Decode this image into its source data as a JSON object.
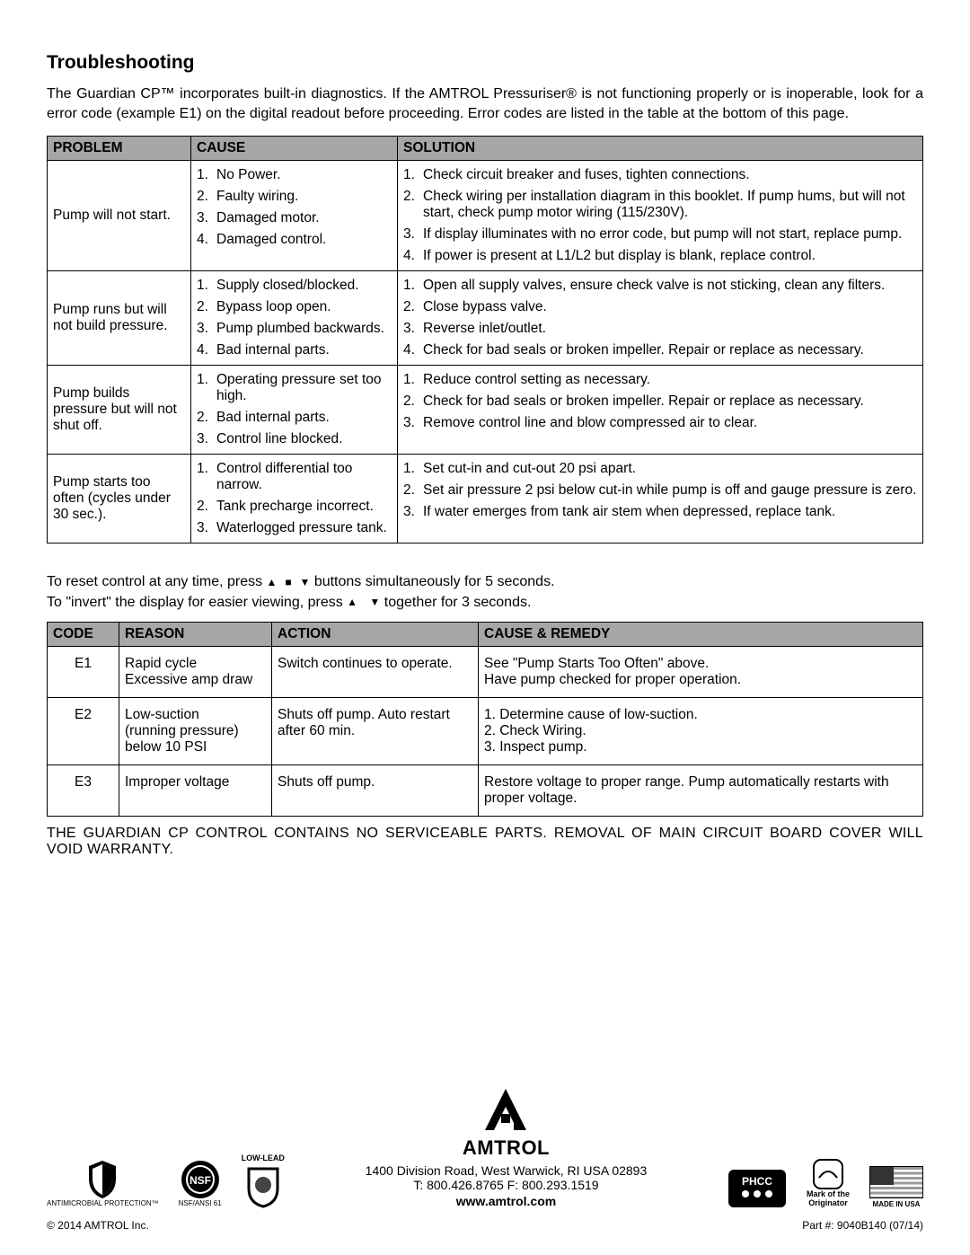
{
  "title": "Troubleshooting",
  "intro": "The Guardian CP™ incorporates built-in diagnostics. If the AMTROL Pressuriser® is not functioning properly or is inoperable, look for a error code (example E1) on the digital readout before proceeding. Error codes are listed in the table at the bottom of this page.",
  "table1": {
    "headers": [
      "PROBLEM",
      "CAUSE",
      "SOLUTION"
    ],
    "rows": [
      {
        "problem": "Pump will not start.",
        "causes": [
          "No Power.",
          "Faulty wiring.",
          "Damaged motor.",
          "Damaged control."
        ],
        "solutions": [
          "Check circuit breaker and fuses, tighten connections.",
          "Check wiring per installation diagram in this booklet. If pump hums, but will not start, check pump motor wiring (115/230V).",
          "If display illuminates with no error code, but pump will not start, replace pump.",
          "If power is present at L1/L2 but display is blank, replace control."
        ]
      },
      {
        "problem": "Pump runs but will not build pressure.",
        "causes": [
          "Supply closed/blocked.",
          "Bypass loop open.",
          "Pump plumbed backwards.",
          "Bad internal parts."
        ],
        "solutions": [
          "Open all supply valves, ensure check valve is not sticking, clean any filters.",
          "Close bypass valve.",
          "Reverse inlet/outlet.",
          "Check for bad seals or broken impeller. Repair or replace as necessary."
        ]
      },
      {
        "problem": "Pump builds pressure but will not shut off.",
        "causes": [
          "Operating pressure set too high.",
          "Bad internal parts.",
          "Control line blocked."
        ],
        "solutions": [
          "Reduce control setting as necessary.",
          "Check for bad seals or broken impeller. Repair or replace as necessary.",
          "Remove control line and blow compressed air to clear."
        ]
      },
      {
        "problem": "Pump starts too often (cycles under 30 sec.).",
        "causes": [
          "Control differential too narrow.",
          "Tank precharge incorrect.",
          "Waterlogged pressure tank."
        ],
        "solutions": [
          "Set cut-in and cut-out 20 psi apart.",
          "Set air pressure 2 psi below cut-in while pump is off and gauge pressure is zero.",
          "If water emerges from tank air stem when depressed, replace tank."
        ]
      }
    ]
  },
  "reset_line1_a": "To reset control at any time, press ",
  "reset_line1_b": " buttons simultaneously for 5 seconds.",
  "reset_line2_a": "To \"invert\" the display for easier viewing, press ",
  "reset_line2_b": " together for 3 seconds.",
  "table2": {
    "headers": [
      "CODE",
      "REASON",
      "ACTION",
      "CAUSE & REMEDY"
    ],
    "rows": [
      {
        "code": "E1",
        "reason": "Rapid cycle\nExcessive amp draw",
        "action": "Switch continues to operate.",
        "remedy": "See \"Pump Starts Too Often\" above.\nHave pump checked for proper operation."
      },
      {
        "code": "E2",
        "reason": "Low-suction\n(running pressure)\nbelow 10 PSI",
        "action": "Shuts off pump. Auto restart after 60 min.",
        "remedy": "1. Determine cause of low-suction.\n2. Check Wiring.\n3. Inspect pump."
      },
      {
        "code": "E3",
        "reason": "Improper voltage",
        "action": "Shuts off pump.",
        "remedy": "Restore voltage to proper range. Pump automatically restarts with proper voltage."
      }
    ]
  },
  "warranty": "THE GUARDIAN CP CONTROL CONTAINS NO SERVICEABLE PARTS. REMOVAL OF MAIN CIRCUIT BOARD COVER WILL VOID WARRANTY.",
  "footer": {
    "company": "AMTROL",
    "address": "1400 Division Road, West Warwick, RI  USA 02893",
    "phones": "T: 800.426.8765    F: 800.293.1519",
    "web": "www.amtrol.com",
    "cert_am": "ANTIMICROBIAL PROTECTION™",
    "cert_nsf": "NSF/ANSI 61",
    "cert_lowlead": "LOW-LEAD",
    "mark_orig": "Mark of the\nOriginator",
    "made_in": "MADE IN USA",
    "copyright": "© 2014 AMTROL Inc.",
    "part": "Part #: 9040B140 (07/14)"
  }
}
